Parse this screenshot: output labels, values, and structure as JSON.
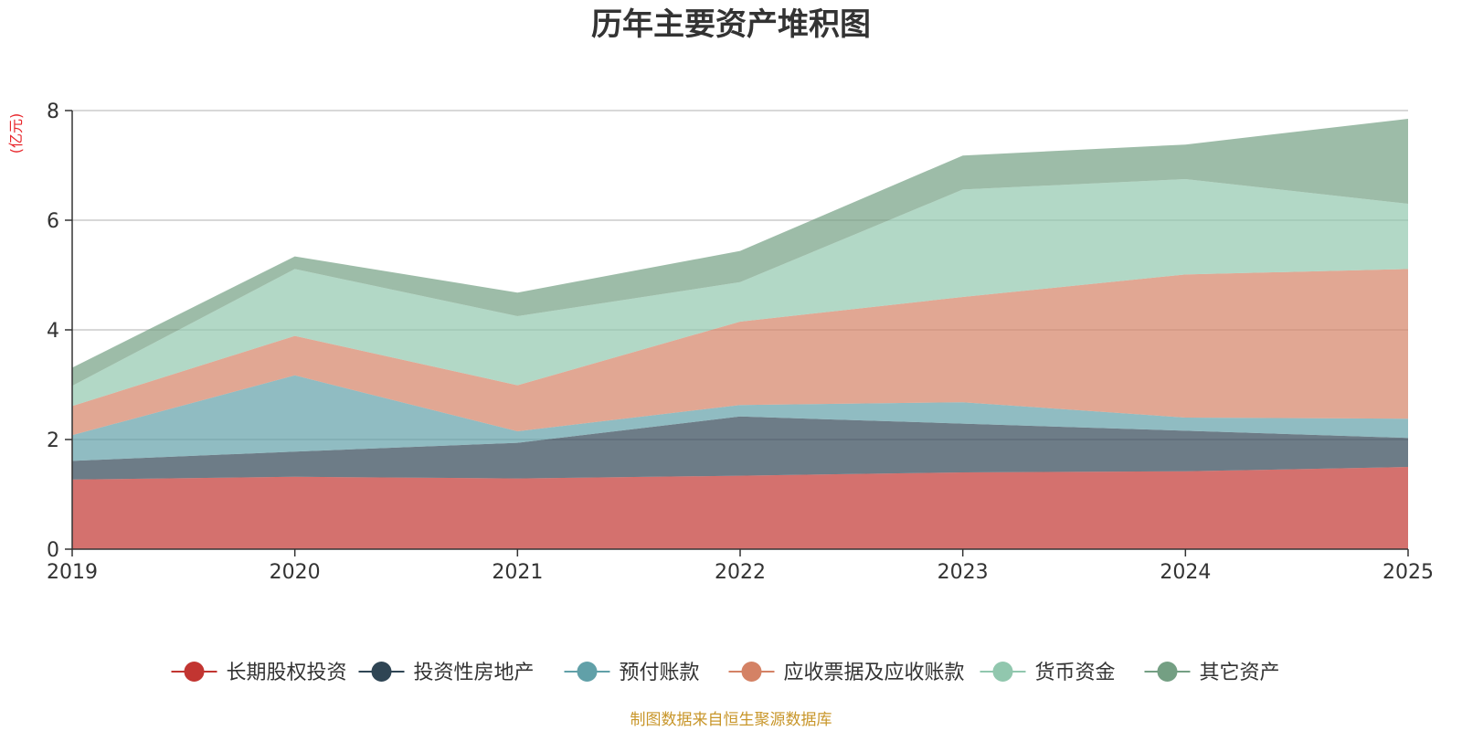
{
  "chart_data": {
    "type": "area",
    "stacked": true,
    "title": "历年主要资产堆积图",
    "ylabel": "(亿元)",
    "xlabel": "",
    "categories": [
      "2019",
      "2020",
      "2021",
      "2022",
      "2023",
      "2024",
      "2025"
    ],
    "ylim": [
      0,
      8
    ],
    "yticks": [
      0,
      2,
      4,
      6,
      8
    ],
    "grid": true,
    "legend_position": "bottom",
    "series": [
      {
        "name": "长期股权投资",
        "color": "#c23531",
        "values": [
          1.27,
          1.32,
          1.29,
          1.34,
          1.4,
          1.42,
          1.5
        ]
      },
      {
        "name": "投资性房地产",
        "color": "#2f4554",
        "values": [
          0.34,
          0.46,
          0.65,
          1.08,
          0.89,
          0.74,
          0.53
        ]
      },
      {
        "name": "预付账款",
        "color": "#61a0a8",
        "values": [
          0.47,
          1.39,
          0.21,
          0.21,
          0.39,
          0.24,
          0.35
        ]
      },
      {
        "name": "应收票据及应收账款",
        "color": "#d48265",
        "values": [
          0.53,
          0.72,
          0.84,
          1.52,
          1.92,
          2.61,
          2.73
        ]
      },
      {
        "name": "货币资金",
        "color": "#91c7ae",
        "values": [
          0.37,
          1.22,
          1.26,
          0.72,
          1.96,
          1.74,
          1.19
        ]
      },
      {
        "name": "其它资产",
        "color": "#749f83",
        "values": [
          0.33,
          0.23,
          0.43,
          0.57,
          0.62,
          0.63,
          1.55
        ]
      }
    ],
    "source_note": "制图数据来自恒生聚源数据库"
  }
}
